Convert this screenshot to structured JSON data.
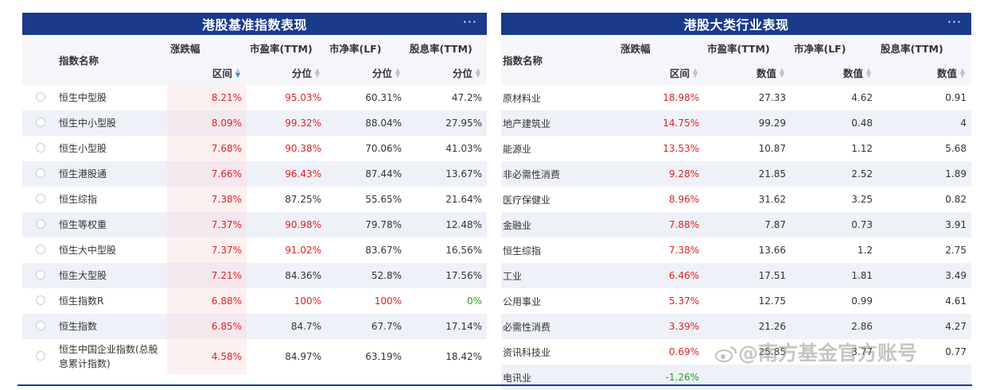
{
  "left": {
    "title": "港股基准指数表现",
    "more": "···",
    "headers": {
      "name": "指数名称",
      "change": "涨跌幅",
      "pe": "市盈率(TTM)",
      "pb": "市净率(LF)",
      "dy": "股息率(TTM)",
      "change_sub": "区间",
      "pe_sub": "分位",
      "pb_sub": "分位",
      "dy_sub": "分位"
    },
    "rows": [
      {
        "name": "恒生中型股",
        "change": "8.21%",
        "pe": "95.03%",
        "pb": "60.31%",
        "dy": "47.2%"
      },
      {
        "name": "恒生中小型股",
        "change": "8.09%",
        "pe": "99.32%",
        "pb": "88.04%",
        "dy": "27.95%"
      },
      {
        "name": "恒生小型股",
        "change": "7.68%",
        "pe": "90.38%",
        "pb": "70.06%",
        "dy": "41.03%"
      },
      {
        "name": "恒生港股通",
        "change": "7.66%",
        "pe": "96.43%",
        "pb": "87.44%",
        "dy": "13.67%"
      },
      {
        "name": "恒生综指",
        "change": "7.38%",
        "pe": "87.25%",
        "pb": "55.65%",
        "dy": "21.64%"
      },
      {
        "name": "恒生等权重",
        "change": "7.37%",
        "pe": "90.98%",
        "pb": "79.78%",
        "dy": "12.48%"
      },
      {
        "name": "恒生大中型股",
        "change": "7.37%",
        "pe": "91.02%",
        "pb": "83.67%",
        "dy": "16.56%"
      },
      {
        "name": "恒生大型股",
        "change": "7.21%",
        "pe": "84.36%",
        "pb": "52.8%",
        "dy": "17.56%"
      },
      {
        "name": "恒生指数R",
        "change": "6.88%",
        "pe": "100%",
        "pb": "100%",
        "dy": "0%"
      },
      {
        "name": "恒生指数",
        "change": "6.85%",
        "pe": "84.7%",
        "pb": "67.7%",
        "dy": "17.14%"
      },
      {
        "name": "恒生中国企业指数(总股息累计指数)",
        "change": "4.58%",
        "pe": "84.97%",
        "pb": "63.19%",
        "dy": "18.42%"
      }
    ]
  },
  "right": {
    "title": "港股大类行业表现",
    "more": "···",
    "headers": {
      "name": "指数名称",
      "change": "涨跌幅",
      "pe": "市盈率(TTM)",
      "pb": "市净率(LF)",
      "dy": "股息率(TTM)",
      "change_sub": "区间",
      "pe_sub": "数值",
      "pb_sub": "数值",
      "dy_sub": "数值"
    },
    "rows": [
      {
        "name": "原材料业",
        "change": "18.98%",
        "pe": "27.33",
        "pb": "4.62",
        "dy": "0.91"
      },
      {
        "name": "地产建筑业",
        "change": "14.75%",
        "pe": "99.29",
        "pb": "0.48",
        "dy": "4"
      },
      {
        "name": "能源业",
        "change": "13.53%",
        "pe": "10.87",
        "pb": "1.12",
        "dy": "5.68"
      },
      {
        "name": "非必需性消费",
        "change": "9.28%",
        "pe": "21.85",
        "pb": "2.52",
        "dy": "1.89"
      },
      {
        "name": "医疗保健业",
        "change": "8.96%",
        "pe": "31.62",
        "pb": "3.25",
        "dy": "0.82"
      },
      {
        "name": "金融业",
        "change": "7.88%",
        "pe": "7.87",
        "pb": "0.73",
        "dy": "3.91"
      },
      {
        "name": "恒生综指",
        "change": "7.38%",
        "pe": "13.66",
        "pb": "1.2",
        "dy": "2.75"
      },
      {
        "name": "工业",
        "change": "6.46%",
        "pe": "17.51",
        "pb": "1.81",
        "dy": "3.49"
      },
      {
        "name": "公用事业",
        "change": "5.37%",
        "pe": "12.75",
        "pb": "0.99",
        "dy": "4.61"
      },
      {
        "name": "必需性消费",
        "change": "3.39%",
        "pe": "21.26",
        "pb": "2.86",
        "dy": "4.27"
      },
      {
        "name": "资讯科技业",
        "change": "0.69%",
        "pe": "25.85",
        "pb": "3.77",
        "dy": "0.77"
      },
      {
        "name": "电讯业",
        "change": "-1.26%",
        "pe": "",
        "pb": "",
        "dy": ""
      }
    ]
  },
  "watermark": "@南方基金官方账号",
  "colors": {
    "header_bg": "#1a3a8c",
    "up": "#e02020",
    "down": "#22a322",
    "sort_active": "#3c82f0"
  }
}
